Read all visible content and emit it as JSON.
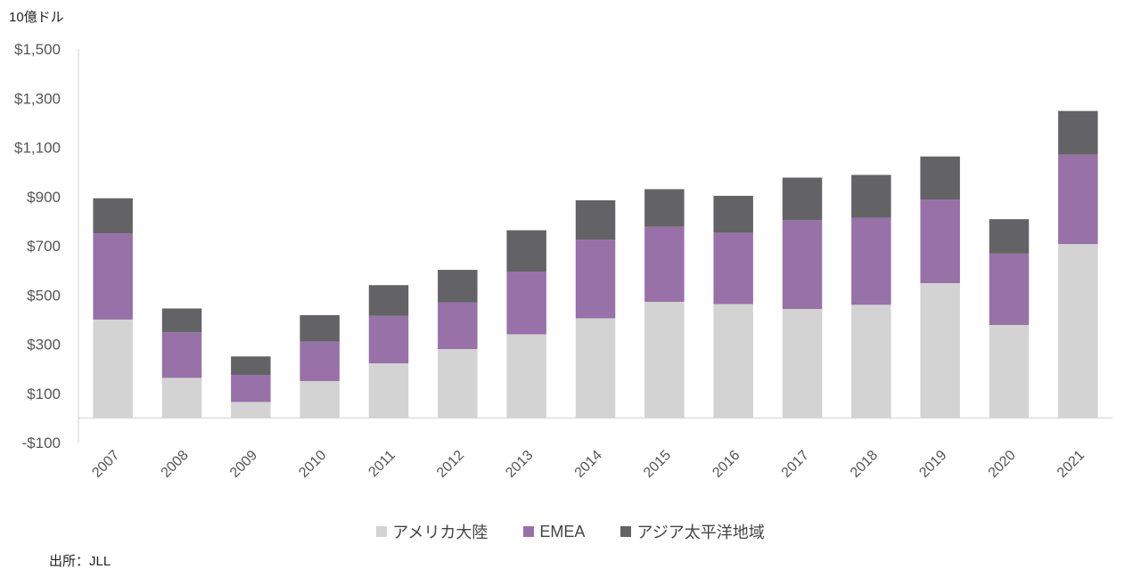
{
  "chart_data": {
    "type": "bar",
    "stacked": true,
    "unit_label": "10億ドル",
    "categories": [
      "2007",
      "2008",
      "2009",
      "2010",
      "2011",
      "2012",
      "2013",
      "2014",
      "2015",
      "2016",
      "2017",
      "2018",
      "2019",
      "2020",
      "2021"
    ],
    "series": [
      {
        "name": "アメリカ大陸",
        "color": "#d3d3d3",
        "values": [
          400,
          163,
          65,
          150,
          222,
          280,
          340,
          405,
          472,
          463,
          443,
          460,
          548,
          378,
          707
        ]
      },
      {
        "name": "EMEA",
        "color": "#9771a8",
        "values": [
          350,
          185,
          110,
          160,
          193,
          190,
          255,
          320,
          305,
          290,
          362,
          353,
          340,
          290,
          363
        ]
      },
      {
        "name": "アジア太平洋地域",
        "color": "#636366",
        "values": [
          143,
          97,
          75,
          108,
          125,
          132,
          168,
          160,
          153,
          150,
          172,
          175,
          175,
          140,
          178
        ]
      }
    ],
    "ylim": [
      -100,
      1500
    ],
    "yticks": [
      -100,
      100,
      300,
      500,
      700,
      900,
      1100,
      1300,
      1500
    ],
    "ytick_labels": [
      "-$100",
      "$100",
      "$300",
      "$500",
      "$700",
      "$900",
      "$1,100",
      "$1,300",
      "$1,500"
    ],
    "legend_position": "bottom",
    "grid": false
  },
  "source": "出所：JLL"
}
